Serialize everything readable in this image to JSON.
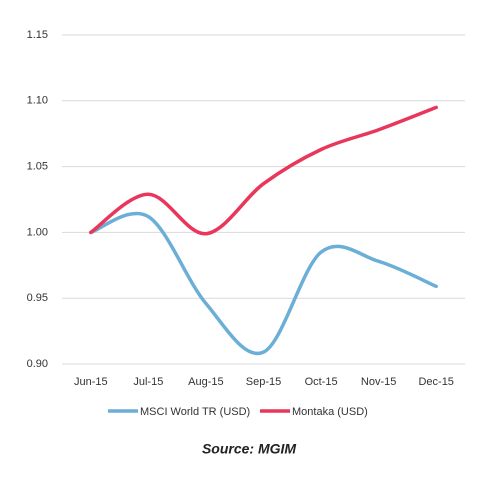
{
  "chart_data": {
    "type": "line",
    "categories": [
      "Jun-15",
      "Jul-15",
      "Aug-15",
      "Sep-15",
      "Oct-15",
      "Nov-15",
      "Dec-15"
    ],
    "series": [
      {
        "name": "MSCI World TR (USD)",
        "color": "#6baed6",
        "values": [
          1.0,
          1.012,
          0.946,
          0.909,
          0.985,
          0.978,
          0.959
        ]
      },
      {
        "name": "Montaka (USD)",
        "color": "#e8375a",
        "values": [
          1.0,
          1.029,
          0.999,
          1.037,
          1.063,
          1.078,
          1.095
        ]
      }
    ],
    "ylim": [
      0.9,
      1.15
    ],
    "yticks": [
      {
        "value": 0.9,
        "label": "0.90"
      },
      0.95,
      {
        "value": 1.0,
        "label": "1.00"
      },
      1.05,
      {
        "value": 1.1,
        "label": "1.10"
      },
      1.15
    ],
    "grid": true,
    "legend": "bottom",
    "source": "Source: MGIM"
  }
}
